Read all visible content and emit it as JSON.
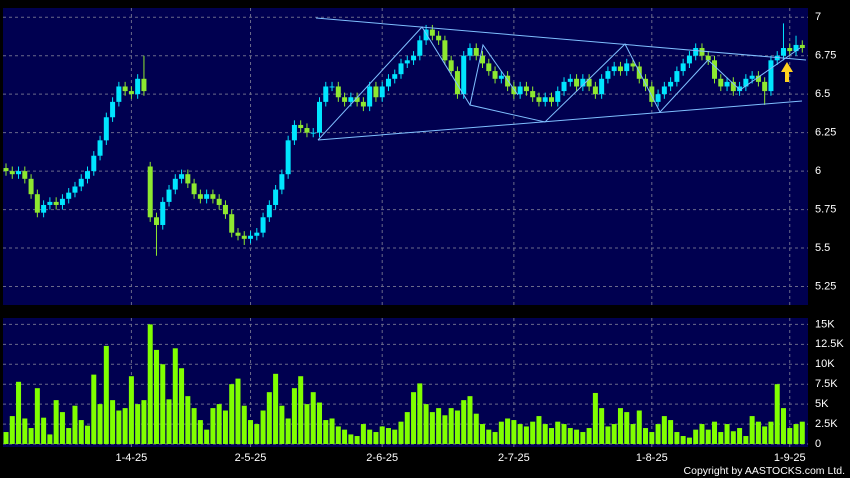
{
  "chart_data": [
    {
      "type": "candlestick",
      "open": [
        6.02,
        6.0,
        5.98,
        6.0,
        5.95,
        5.85,
        5.73,
        5.78,
        5.8,
        5.78,
        5.82,
        5.86,
        5.9,
        5.95,
        6.0,
        6.1,
        6.2,
        6.35,
        6.45,
        6.55,
        6.52,
        6.5,
        6.6,
        6.03,
        5.7,
        5.65,
        5.8,
        5.88,
        5.95,
        5.98,
        5.92,
        5.85,
        5.82,
        5.85,
        5.82,
        5.78,
        5.72,
        5.6,
        5.58,
        5.56,
        5.58,
        5.6,
        5.7,
        5.78,
        5.88,
        5.98,
        6.2,
        6.3,
        6.28,
        6.25,
        6.25,
        6.45,
        6.55,
        6.55,
        6.48,
        6.45,
        6.48,
        6.45,
        6.42,
        6.55,
        6.48,
        6.55,
        6.6,
        6.63,
        6.7,
        6.72,
        6.75,
        6.85,
        6.92,
        6.88,
        6.85,
        6.72,
        6.65,
        6.5,
        6.75,
        6.8,
        6.75,
        6.7,
        6.65,
        6.6,
        6.62,
        6.55,
        6.5,
        6.55,
        6.52,
        6.48,
        6.45,
        6.48,
        6.45,
        6.52,
        6.58,
        6.6,
        6.55,
        6.6,
        6.55,
        6.5,
        6.6,
        6.65,
        6.68,
        6.65,
        6.7,
        6.68,
        6.6,
        6.55,
        6.45,
        6.5,
        6.55,
        6.58,
        6.65,
        6.7,
        6.75,
        6.8,
        6.75,
        6.72,
        6.6,
        6.55,
        6.58,
        6.52,
        6.55,
        6.6,
        6.62,
        6.58,
        6.52,
        6.72,
        6.75,
        6.8,
        6.78,
        6.82
      ],
      "high": [
        6.05,
        6.03,
        6.03,
        6.03,
        5.98,
        5.88,
        5.81,
        5.83,
        5.83,
        5.85,
        5.89,
        5.93,
        5.98,
        6.03,
        6.13,
        6.23,
        6.38,
        6.48,
        6.58,
        6.58,
        6.55,
        6.63,
        6.75,
        6.06,
        5.73,
        5.83,
        5.91,
        5.98,
        6.01,
        6.01,
        5.95,
        5.88,
        5.88,
        5.88,
        5.85,
        5.81,
        5.75,
        5.63,
        5.61,
        5.61,
        5.63,
        5.73,
        5.81,
        5.91,
        6.01,
        6.23,
        6.33,
        6.33,
        6.31,
        6.28,
        6.48,
        6.58,
        6.58,
        6.58,
        6.51,
        6.51,
        6.51,
        6.48,
        6.58,
        6.58,
        6.58,
        6.63,
        6.66,
        6.73,
        6.75,
        6.78,
        6.88,
        6.95,
        6.95,
        6.91,
        6.88,
        6.75,
        6.68,
        6.78,
        6.83,
        6.83,
        6.78,
        6.73,
        6.68,
        6.65,
        6.65,
        6.58,
        6.58,
        6.58,
        6.55,
        6.51,
        6.51,
        6.51,
        6.55,
        6.61,
        6.63,
        6.63,
        6.63,
        6.63,
        6.58,
        6.63,
        6.68,
        6.71,
        6.71,
        6.73,
        6.73,
        6.71,
        6.63,
        6.58,
        6.53,
        6.58,
        6.61,
        6.68,
        6.73,
        6.78,
        6.83,
        6.83,
        6.78,
        6.75,
        6.63,
        6.61,
        6.61,
        6.58,
        6.63,
        6.65,
        6.65,
        6.61,
        6.75,
        6.78,
        6.96,
        6.83,
        6.88,
        6.85
      ],
      "low": [
        5.97,
        5.95,
        5.95,
        5.92,
        5.82,
        5.7,
        5.7,
        5.75,
        5.75,
        5.75,
        5.79,
        5.83,
        5.87,
        5.92,
        5.97,
        6.07,
        6.17,
        6.32,
        6.42,
        6.49,
        6.47,
        6.47,
        6.49,
        5.67,
        5.45,
        5.62,
        5.77,
        5.85,
        5.92,
        5.89,
        5.82,
        5.79,
        5.79,
        5.79,
        5.75,
        5.69,
        5.57,
        5.55,
        5.52,
        5.53,
        5.55,
        5.57,
        5.67,
        5.75,
        5.85,
        5.95,
        6.17,
        6.25,
        6.22,
        6.22,
        6.22,
        6.42,
        6.52,
        6.45,
        6.42,
        6.42,
        6.42,
        6.39,
        6.39,
        6.45,
        6.45,
        6.52,
        6.57,
        6.6,
        6.67,
        6.69,
        6.72,
        6.82,
        6.85,
        6.82,
        6.69,
        6.62,
        6.47,
        6.47,
        6.72,
        6.72,
        6.67,
        6.62,
        6.57,
        6.57,
        6.52,
        6.47,
        6.47,
        6.49,
        6.45,
        6.42,
        6.42,
        6.42,
        6.42,
        6.49,
        6.55,
        6.52,
        6.52,
        6.52,
        6.47,
        6.47,
        6.57,
        6.62,
        6.62,
        6.62,
        6.65,
        6.57,
        6.52,
        6.42,
        6.42,
        6.47,
        6.52,
        6.55,
        6.62,
        6.67,
        6.72,
        6.72,
        6.69,
        6.57,
        6.52,
        6.52,
        6.49,
        6.49,
        6.52,
        6.57,
        6.55,
        6.43,
        6.49,
        6.69,
        6.72,
        6.75,
        6.75,
        6.77
      ],
      "close": [
        6.0,
        5.98,
        6.0,
        5.95,
        5.85,
        5.73,
        5.78,
        5.8,
        5.78,
        5.82,
        5.86,
        5.9,
        5.95,
        6.0,
        6.1,
        6.2,
        6.35,
        6.45,
        6.55,
        6.52,
        6.5,
        6.6,
        6.52,
        5.7,
        5.65,
        5.8,
        5.88,
        5.95,
        5.98,
        5.92,
        5.85,
        5.82,
        5.85,
        5.82,
        5.78,
        5.72,
        5.6,
        5.58,
        5.56,
        5.58,
        5.6,
        5.7,
        5.78,
        5.88,
        5.98,
        6.2,
        6.3,
        6.28,
        6.25,
        6.25,
        6.45,
        6.55,
        6.55,
        6.48,
        6.45,
        6.48,
        6.45,
        6.42,
        6.55,
        6.48,
        6.55,
        6.6,
        6.63,
        6.7,
        6.72,
        6.75,
        6.85,
        6.92,
        6.88,
        6.85,
        6.72,
        6.65,
        6.5,
        6.75,
        6.8,
        6.75,
        6.7,
        6.65,
        6.6,
        6.62,
        6.55,
        6.5,
        6.55,
        6.52,
        6.48,
        6.45,
        6.48,
        6.45,
        6.52,
        6.58,
        6.6,
        6.55,
        6.6,
        6.55,
        6.5,
        6.6,
        6.65,
        6.68,
        6.65,
        6.7,
        6.68,
        6.6,
        6.55,
        6.45,
        6.5,
        6.55,
        6.58,
        6.65,
        6.7,
        6.75,
        6.8,
        6.75,
        6.72,
        6.6,
        6.55,
        6.58,
        6.52,
        6.55,
        6.6,
        6.62,
        6.58,
        6.52,
        6.72,
        6.75,
        6.8,
        6.78,
        6.82,
        6.8
      ],
      "up_color": "#00e5ff",
      "down_color": "#8ee830",
      "ylim": [
        5.13,
        7.06
      ],
      "yticks": [
        5.25,
        5.5,
        5.75,
        6,
        6.25,
        6.5,
        6.75,
        7
      ],
      "grid": true
    },
    {
      "type": "bar",
      "categories": [
        null,
        null,
        null,
        null,
        null,
        null,
        null,
        null,
        null,
        null,
        null,
        null,
        null,
        null,
        null,
        null,
        null,
        null,
        null,
        null,
        "1-4-25",
        null,
        null,
        null,
        null,
        null,
        null,
        null,
        null,
        null,
        null,
        null,
        null,
        null,
        null,
        null,
        null,
        null,
        null,
        "2-5-25",
        null,
        null,
        null,
        null,
        null,
        null,
        null,
        null,
        null,
        null,
        null,
        null,
        null,
        null,
        null,
        null,
        null,
        null,
        null,
        null,
        "2-6-25",
        null,
        null,
        null,
        null,
        null,
        null,
        null,
        null,
        null,
        null,
        null,
        null,
        null,
        null,
        null,
        null,
        null,
        null,
        null,
        null,
        "2-7-25",
        null,
        null,
        null,
        null,
        null,
        null,
        null,
        null,
        null,
        null,
        null,
        null,
        null,
        null,
        null,
        null,
        null,
        null,
        null,
        null,
        null,
        "1-8-25",
        null,
        null,
        null,
        null,
        null,
        null,
        null,
        null,
        null,
        null,
        null,
        null,
        null,
        null,
        null,
        null,
        null,
        null,
        null,
        null,
        null,
        "1-9-25",
        null,
        null
      ],
      "values": [
        1500,
        3500,
        7800,
        3200,
        2000,
        7000,
        3300,
        1200,
        5500,
        4000,
        2000,
        4800,
        3000,
        2300,
        8700,
        5000,
        12300,
        5500,
        4200,
        4500,
        8500,
        5000,
        5500,
        15000,
        11800,
        10000,
        5600,
        12000,
        9500,
        6000,
        4500,
        3000,
        1800,
        4500,
        5000,
        4200,
        7500,
        8200,
        4800,
        3000,
        2500,
        4200,
        6500,
        8800,
        4800,
        3200,
        7000,
        8500,
        5000,
        6500,
        5200,
        3000,
        3200,
        2200,
        1800,
        1200,
        1000,
        2500,
        1800,
        1500,
        2200,
        2000,
        1800,
        2800,
        4000,
        6500,
        7600,
        5000,
        4000,
        4500,
        3600,
        4500,
        4200,
        5500,
        6000,
        3800,
        2500,
        1800,
        1500,
        2800,
        3200,
        3000,
        2500,
        2200,
        2800,
        3500,
        2500,
        2000,
        2800,
        2500,
        2000,
        1800,
        1500,
        2000,
        6400,
        4500,
        2200,
        2500,
        4500,
        4000,
        2500,
        4200,
        2000,
        1500,
        2500,
        3500,
        3000,
        1500,
        1000,
        800,
        1800,
        2500,
        1800,
        2800,
        1500,
        2500,
        1600,
        2000,
        1000,
        3500,
        2800,
        2200,
        2800,
        7500,
        4500,
        2000,
        2500,
        2800
      ],
      "color": "#80ff00",
      "ylim": [
        0,
        15800
      ],
      "yticks": [
        0,
        {
          "value": 2500,
          "label": "2.5K"
        },
        {
          "value": 5000,
          "label": "5K"
        },
        {
          "value": 7500,
          "label": "7.5K"
        },
        {
          "value": 10000,
          "label": "10K"
        },
        {
          "value": 12500,
          "label": "12.5K"
        },
        {
          "value": 15000,
          "label": "15K"
        }
      ],
      "grid": true
    }
  ],
  "copyright": "Copyright by AASTOCKS.com Ltd."
}
